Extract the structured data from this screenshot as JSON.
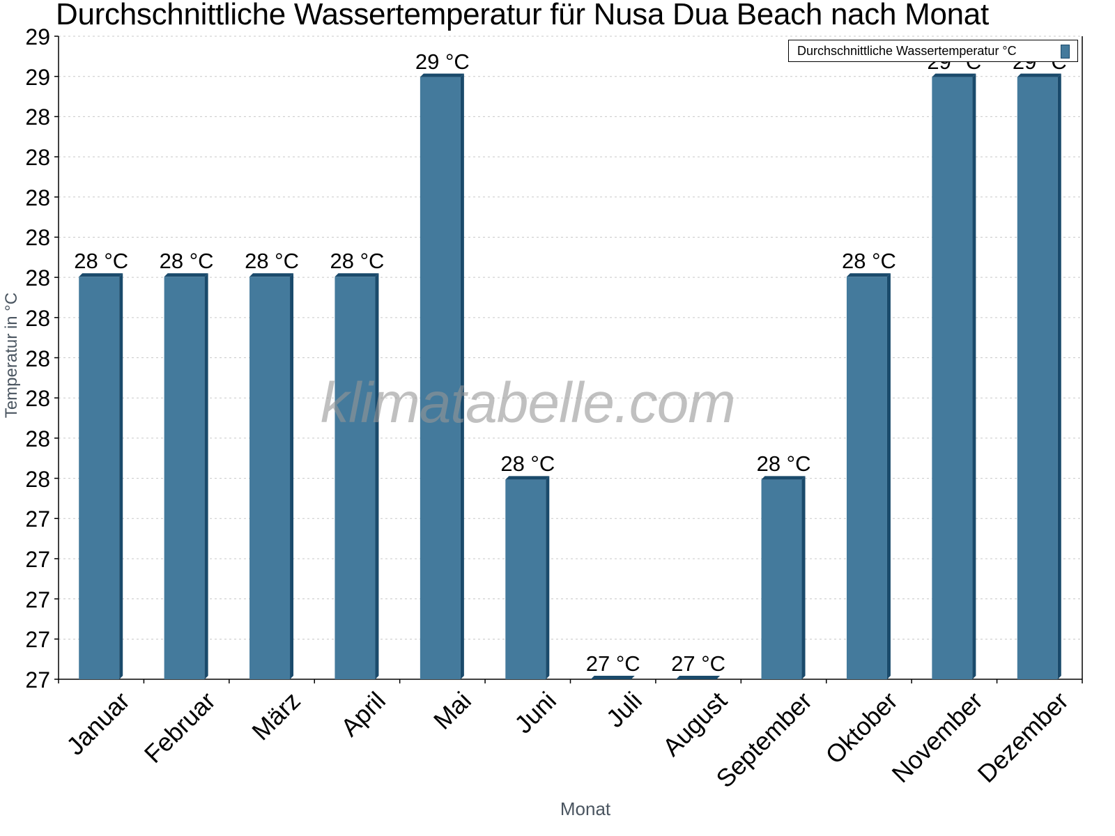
{
  "title": "Durchschnittliche Wassertemperatur für Nusa Dua Beach nach Monat",
  "watermark": "klimatabelle.com",
  "legend": {
    "label": "Durchschnittliche Wassertemperatur °C",
    "swatch_color": "#447a9c"
  },
  "axes": {
    "xlabel": "Monat",
    "ylabel": "Temperatur in °C",
    "ytick_labels": [
      "29",
      "29",
      "28",
      "28",
      "28",
      "28",
      "28",
      "28",
      "28",
      "28",
      "28",
      "28",
      "27",
      "27",
      "27",
      "27",
      "27"
    ]
  },
  "colors": {
    "bar_front": "#447a9c",
    "bar_side": "#1a4a6b",
    "grid": "#c8c8c8",
    "axis": "#000000"
  },
  "chart_data": {
    "type": "bar",
    "title": "Durchschnittliche Wassertemperatur für Nusa Dua Beach nach Monat",
    "xlabel": "Monat",
    "ylabel": "Temperatur in °C",
    "categories": [
      "Januar",
      "Februar",
      "März",
      "April",
      "Mai",
      "Juni",
      "Juli",
      "August",
      "September",
      "Oktober",
      "November",
      "Dezember"
    ],
    "series": [
      {
        "name": "Durchschnittliche Wassertemperatur °C",
        "values": [
          28.33,
          28.33,
          28.33,
          28.33,
          28.99,
          27.66,
          27.0,
          27.0,
          27.66,
          28.33,
          28.99,
          28.99
        ],
        "labels": [
          "28 °C",
          "28 °C",
          "28 °C",
          "28 °C",
          "29 °C",
          "28 °C",
          "27 °C",
          "27 °C",
          "28 °C",
          "28 °C",
          "29 °C",
          "29 °C"
        ]
      }
    ],
    "ylim": [
      27.0,
      29.125
    ],
    "ytick_labels": [
      "27",
      "27",
      "27",
      "27",
      "27",
      "28",
      "28",
      "28",
      "28",
      "28",
      "28",
      "28",
      "28",
      "28",
      "28",
      "29",
      "29"
    ],
    "grid": true,
    "legend_position": "top-right",
    "bar_style": "3d"
  }
}
